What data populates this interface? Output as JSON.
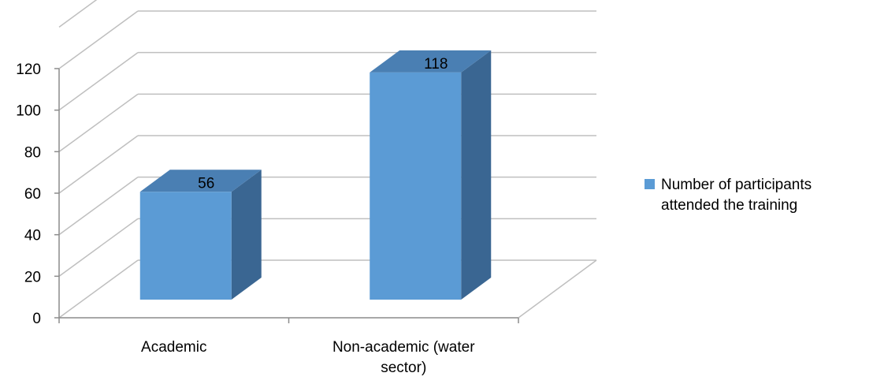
{
  "chart_data": {
    "type": "bar",
    "categories": [
      "Academic",
      "Non-academic (water sector)"
    ],
    "series": [
      {
        "name": "Number of participants attended the training",
        "values": [
          56,
          118
        ],
        "color": "#5b9bd5"
      }
    ],
    "data_labels": [
      "56",
      "118"
    ],
    "ylim": [
      0,
      120
    ],
    "yticks": [
      0,
      20,
      40,
      60,
      80,
      100,
      120
    ],
    "ytick_labels": [
      "0",
      "20",
      "40",
      "60",
      "80",
      "100",
      "120"
    ],
    "grid": true,
    "style": "3d-column",
    "legend_position": "right"
  }
}
